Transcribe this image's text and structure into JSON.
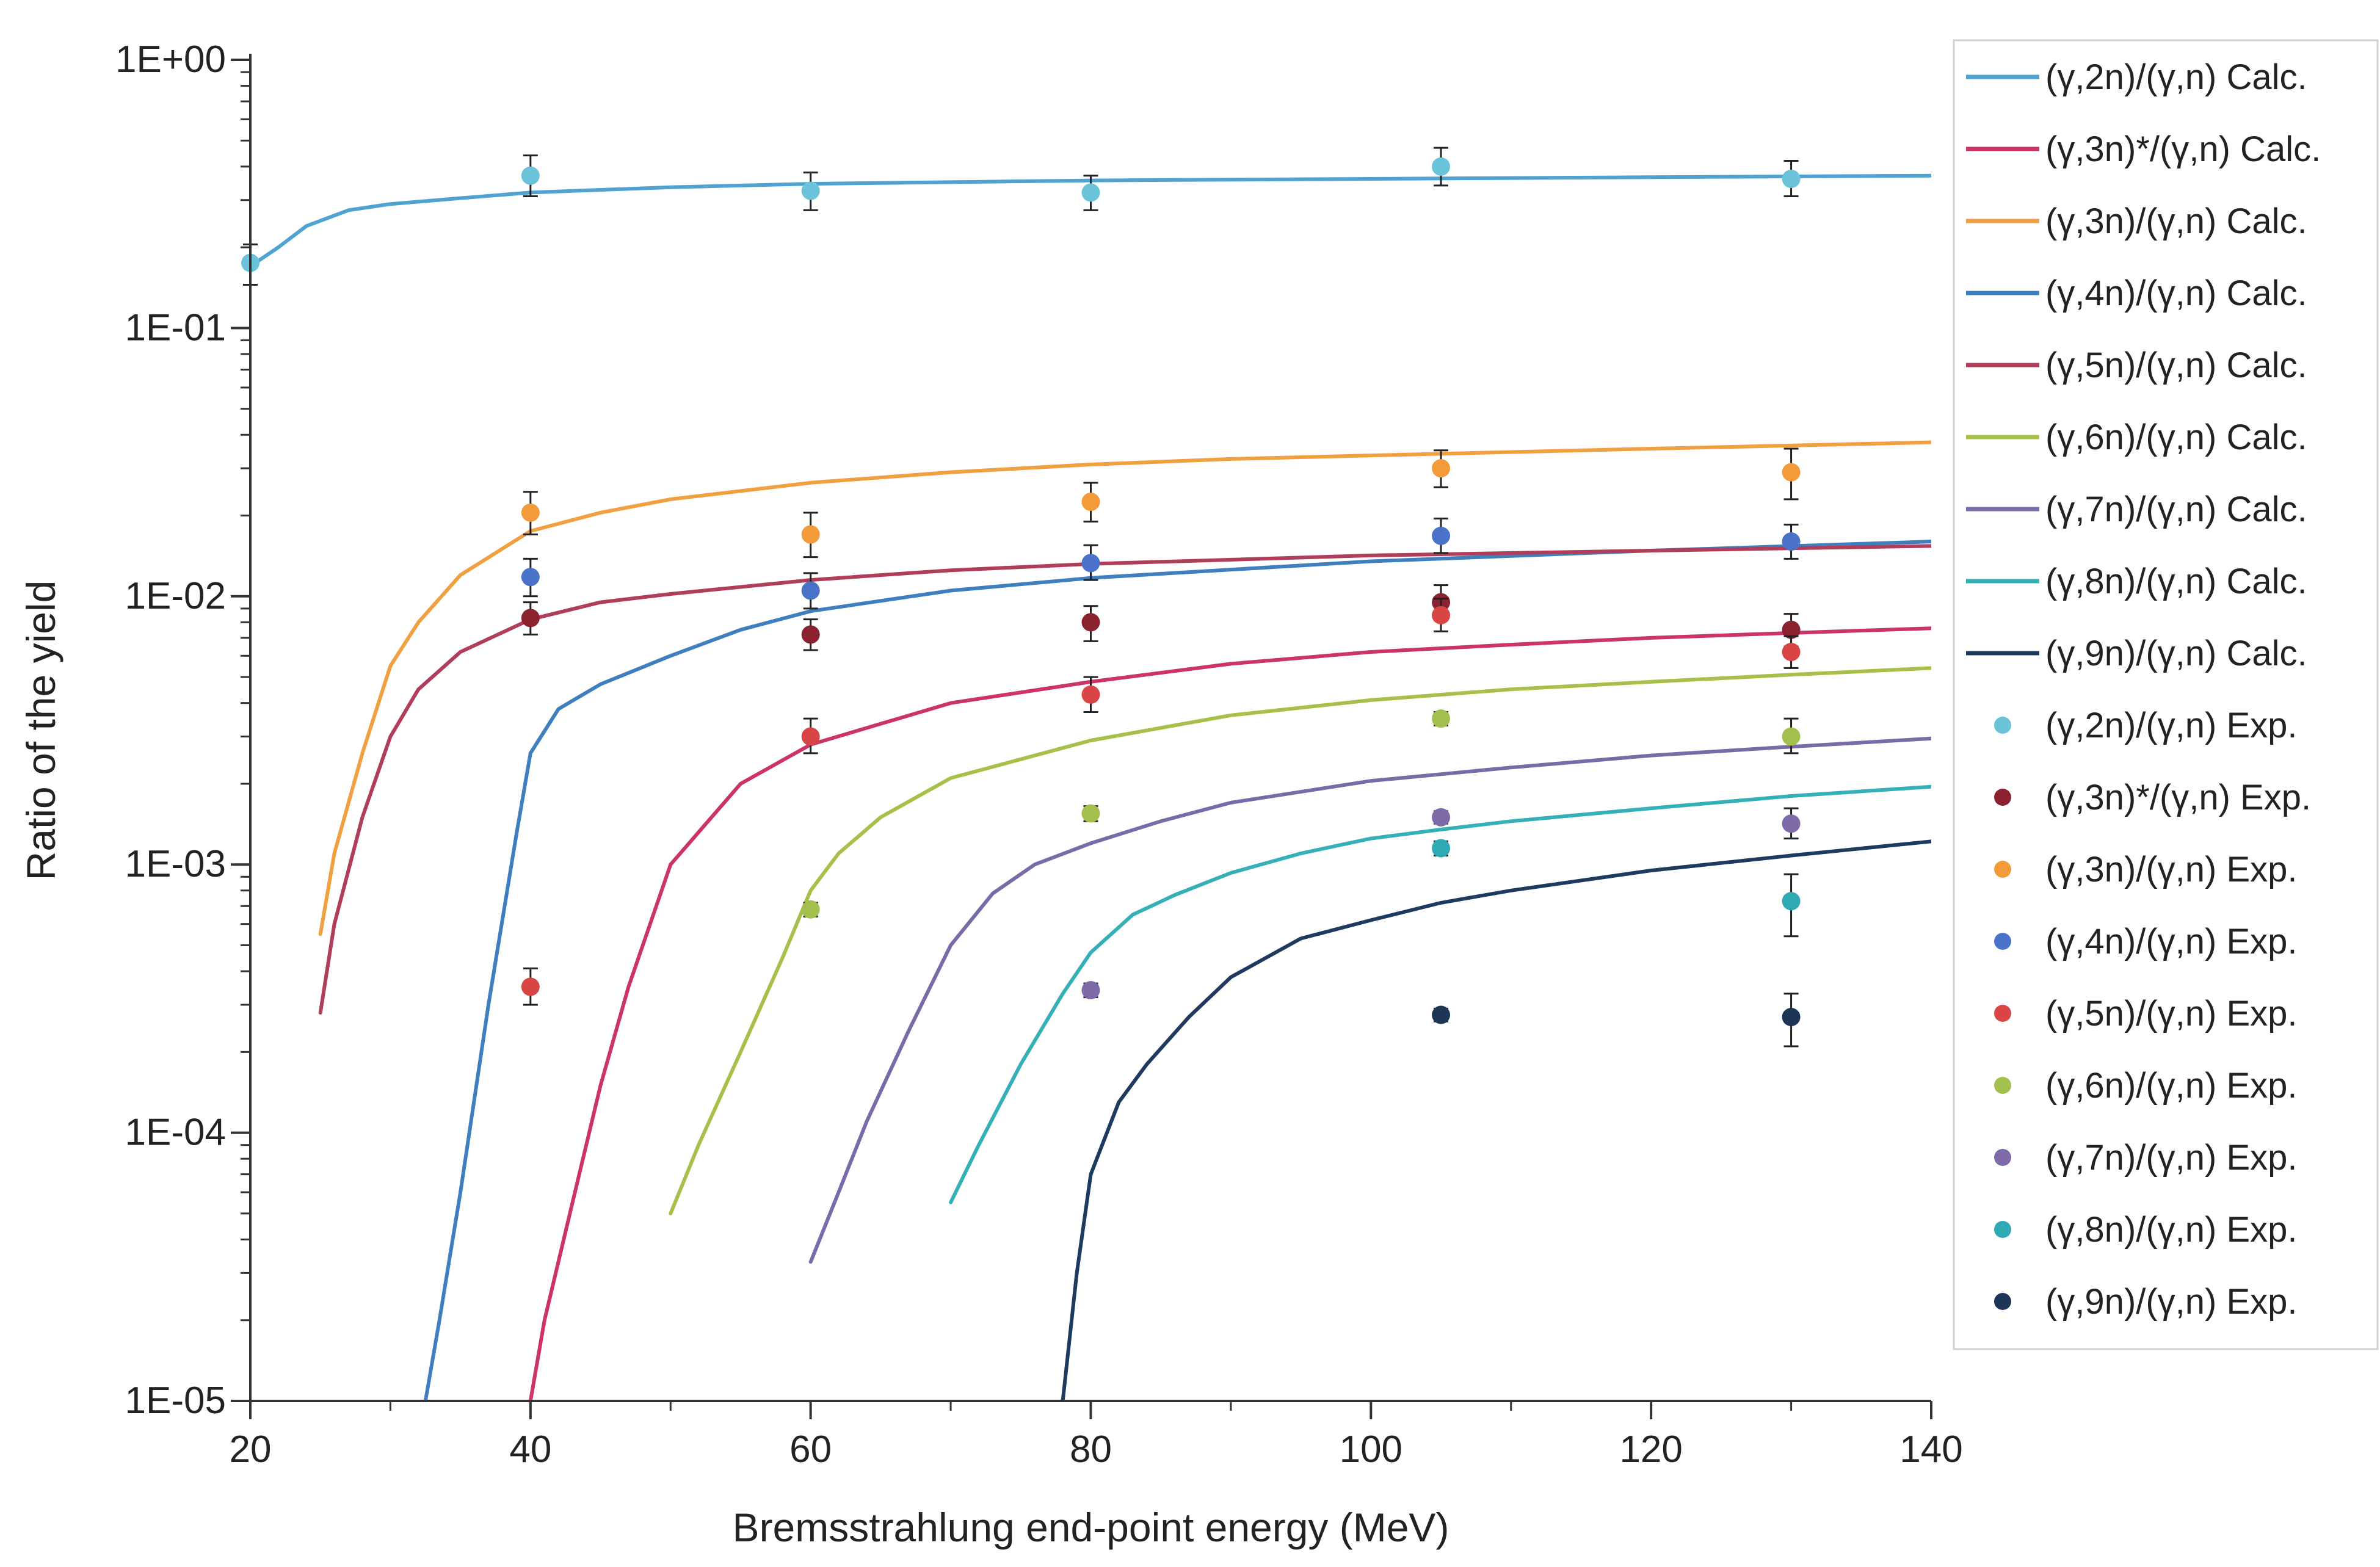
{
  "chart_data": {
    "type": "line",
    "title": "",
    "xlabel": "Bremsstrahlung end-point energy (MeV)",
    "ylabel": "Ratio of the yield",
    "x_scale": "linear",
    "y_scale": "log",
    "xlim": [
      20,
      140
    ],
    "ylim": [
      1e-05,
      1
    ],
    "x_ticks": [
      20,
      40,
      60,
      80,
      100,
      120,
      140
    ],
    "x_tick_labels": [
      "20",
      "40",
      "60",
      "80",
      "100",
      "120",
      "140"
    ],
    "y_ticks": [
      1e-05,
      0.0001,
      0.001,
      0.01,
      0.1,
      1
    ],
    "y_tick_labels": [
      "1E-05",
      "1E-04",
      "1E-03",
      "1E-02",
      "1E-01",
      "1E+00"
    ],
    "grid": false,
    "legend_position": "right",
    "calc_series": [
      {
        "name": "(γ,2n)/(γ,n) Calc.",
        "color": "#4fa3d1",
        "x": [
          20,
          22,
          24,
          27,
          30,
          35,
          40,
          50,
          60,
          80,
          100,
          120,
          140
        ],
        "y": [
          0.17,
          0.2,
          0.24,
          0.275,
          0.29,
          0.305,
          0.32,
          0.335,
          0.345,
          0.355,
          0.36,
          0.365,
          0.37
        ]
      },
      {
        "name": "(γ,3n)*/(γ,n) Calc.",
        "color": "#cc3366",
        "x": [
          40,
          41,
          43,
          45,
          47,
          50,
          55,
          60,
          70,
          80,
          90,
          100,
          110,
          120,
          130,
          140
        ],
        "y": [
          1e-05,
          2e-05,
          5.5e-05,
          0.00015,
          0.00035,
          0.001,
          0.002,
          0.0028,
          0.004,
          0.0048,
          0.0056,
          0.0062,
          0.0066,
          0.007,
          0.0073,
          0.0076
        ]
      },
      {
        "name": "(γ,3n)/(γ,n) Calc.",
        "color": "#f0a040",
        "x": [
          25,
          26,
          28,
          30,
          32,
          35,
          40,
          45,
          50,
          60,
          70,
          80,
          90,
          100,
          120,
          140
        ],
        "y": [
          0.00055,
          0.0011,
          0.0026,
          0.0055,
          0.008,
          0.012,
          0.0175,
          0.0205,
          0.023,
          0.0265,
          0.029,
          0.031,
          0.0325,
          0.0335,
          0.0355,
          0.0375
        ]
      },
      {
        "name": "(γ,4n)/(γ,n) Calc.",
        "color": "#3f7fbf",
        "x": [
          32.5,
          33.5,
          35,
          37,
          39,
          40,
          42,
          45,
          50,
          55,
          60,
          70,
          80,
          100,
          120,
          140
        ],
        "y": [
          1e-05,
          2e-05,
          6e-05,
          0.0003,
          0.0013,
          0.0026,
          0.0038,
          0.0047,
          0.006,
          0.0075,
          0.0088,
          0.0105,
          0.0117,
          0.0135,
          0.0148,
          0.016
        ]
      },
      {
        "name": "(γ,5n)/(γ,n) Calc.",
        "color": "#b03d5a",
        "x": [
          25,
          26,
          28,
          30,
          32,
          35,
          40,
          45,
          50,
          60,
          70,
          80,
          100,
          120,
          140
        ],
        "y": [
          0.00028,
          0.0006,
          0.0015,
          0.003,
          0.0045,
          0.0062,
          0.0082,
          0.0095,
          0.0102,
          0.0115,
          0.0125,
          0.0132,
          0.0142,
          0.0148,
          0.0154
        ]
      },
      {
        "name": "(γ,6n)/(γ,n) Calc.",
        "color": "#a6c04a",
        "x": [
          50,
          52,
          55,
          58,
          60,
          62,
          65,
          70,
          80,
          90,
          100,
          110,
          120,
          130,
          140
        ],
        "y": [
          5e-05,
          9e-05,
          0.0002,
          0.00045,
          0.0008,
          0.0011,
          0.0015,
          0.0021,
          0.0029,
          0.0036,
          0.0041,
          0.0045,
          0.0048,
          0.0051,
          0.0054
        ]
      },
      {
        "name": "(γ,7n)/(γ,n) Calc.",
        "color": "#7a6ba8",
        "x": [
          60,
          62,
          64,
          67,
          70,
          73,
          76,
          80,
          85,
          90,
          100,
          110,
          120,
          130,
          140
        ],
        "y": [
          3.3e-05,
          6e-05,
          0.00011,
          0.00024,
          0.0005,
          0.00078,
          0.001,
          0.0012,
          0.00145,
          0.0017,
          0.00205,
          0.0023,
          0.00255,
          0.00275,
          0.00295
        ]
      },
      {
        "name": "(γ,8n)/(γ,n) Calc.",
        "color": "#36b0b8",
        "x": [
          70,
          72,
          75,
          78,
          80,
          83,
          86,
          90,
          95,
          100,
          105,
          110,
          120,
          130,
          140
        ],
        "y": [
          5.5e-05,
          9e-05,
          0.00018,
          0.00033,
          0.00047,
          0.00065,
          0.00077,
          0.00093,
          0.0011,
          0.00125,
          0.00135,
          0.00145,
          0.00162,
          0.0018,
          0.00195
        ]
      },
      {
        "name": "(γ,9n)/(γ,n) Calc.",
        "color": "#1e3a5f",
        "x": [
          78,
          79,
          80,
          82,
          84,
          87,
          90,
          95,
          100,
          105,
          110,
          120,
          130,
          140
        ],
        "y": [
          1e-05,
          3e-05,
          7e-05,
          0.00013,
          0.00018,
          0.00027,
          0.00038,
          0.00053,
          0.00062,
          0.00072,
          0.0008,
          0.00095,
          0.00108,
          0.00122
        ]
      }
    ],
    "exp_series": [
      {
        "name": "(γ,2n)/(γ,n) Exp.",
        "color": "#6bc3d9",
        "x": [
          20,
          40,
          60,
          80,
          105,
          130
        ],
        "y": [
          0.175,
          0.37,
          0.325,
          0.32,
          0.4,
          0.36
        ],
        "err_lo": [
          0.145,
          0.31,
          0.275,
          0.275,
          0.34,
          0.31
        ],
        "err_hi": [
          0.205,
          0.44,
          0.38,
          0.37,
          0.47,
          0.42
        ]
      },
      {
        "name": "(γ,3n)*/(γ,n) Exp.",
        "color": "#8b2230",
        "x": [
          40,
          60,
          80,
          105,
          130
        ],
        "y": [
          0.0083,
          0.0072,
          0.008,
          0.0095,
          0.0075
        ],
        "err_lo": [
          0.0072,
          0.0063,
          0.0068,
          0.0083,
          0.0065
        ],
        "err_hi": [
          0.0095,
          0.0082,
          0.0092,
          0.011,
          0.0086
        ]
      },
      {
        "name": "(γ,3n)/(γ,n) Exp.",
        "color": "#f39a3b",
        "x": [
          40,
          60,
          80,
          105,
          130
        ],
        "y": [
          0.0205,
          0.017,
          0.0225,
          0.03,
          0.029
        ],
        "err_lo": [
          0.017,
          0.014,
          0.019,
          0.0255,
          0.023
        ],
        "err_hi": [
          0.0245,
          0.0205,
          0.0265,
          0.035,
          0.0355
        ]
      },
      {
        "name": "(γ,4n)/(γ,n) Exp.",
        "color": "#4a72c8",
        "x": [
          40,
          60,
          80,
          105,
          130
        ],
        "y": [
          0.0118,
          0.0105,
          0.0133,
          0.0168,
          0.016
        ],
        "err_lo": [
          0.01,
          0.009,
          0.0115,
          0.0145,
          0.0138
        ],
        "err_hi": [
          0.0138,
          0.0122,
          0.0155,
          0.0195,
          0.0185
        ]
      },
      {
        "name": "(γ,5n)/(γ,n) Exp.",
        "color": "#d94545",
        "x": [
          40,
          60,
          80,
          105,
          130
        ],
        "y": [
          0.00035,
          0.003,
          0.0043,
          0.0085,
          0.0062
        ],
        "err_lo": [
          0.0003,
          0.0026,
          0.0037,
          0.0074,
          0.0054
        ],
        "err_hi": [
          0.00041,
          0.0035,
          0.005,
          0.0098,
          0.0071
        ]
      },
      {
        "name": "(γ,6n)/(γ,n) Exp.",
        "color": "#a3bf4e",
        "x": [
          60,
          80,
          105,
          130
        ],
        "y": [
          0.00068,
          0.00155,
          0.0035,
          0.003
        ],
        "err_lo": [
          0.00064,
          0.00145,
          0.0033,
          0.0026
        ],
        "err_hi": [
          0.00072,
          0.00165,
          0.0037,
          0.0035
        ]
      },
      {
        "name": "(γ,7n)/(γ,n) Exp.",
        "color": "#7d6aa6",
        "x": [
          80,
          105,
          130
        ],
        "y": [
          0.00034,
          0.0015,
          0.00142
        ],
        "err_lo": [
          0.00032,
          0.00142,
          0.00125
        ],
        "err_hi": [
          0.00036,
          0.00158,
          0.00162
        ]
      },
      {
        "name": "(γ,8n)/(γ,n) Exp.",
        "color": "#2faab5",
        "x": [
          105,
          130
        ],
        "y": [
          0.00115,
          0.00073
        ],
        "err_lo": [
          0.00108,
          0.00054
        ],
        "err_hi": [
          0.00122,
          0.00092
        ]
      },
      {
        "name": "(γ,9n)/(γ,n) Exp.",
        "color": "#1d3557",
        "x": [
          105,
          130
        ],
        "y": [
          0.000275,
          0.00027
        ],
        "err_lo": [
          0.00026,
          0.00021
        ],
        "err_hi": [
          0.00029,
          0.00033
        ]
      }
    ]
  }
}
